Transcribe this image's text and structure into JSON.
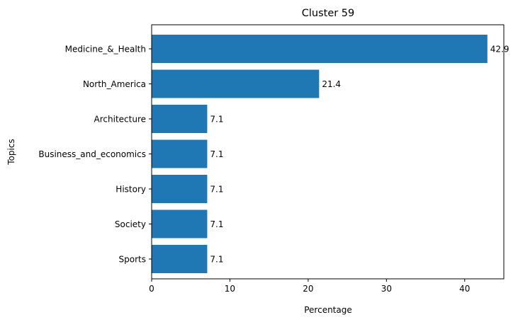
{
  "chart_data": {
    "type": "bar",
    "orientation": "horizontal",
    "title": "Cluster 59",
    "xlabel": "Percentage",
    "ylabel": "Topics",
    "categories": [
      "Medicine_&_Health",
      "North_America",
      "Architecture",
      "Business_and_economics",
      "History",
      "Society",
      "Sports"
    ],
    "values": [
      42.9,
      21.4,
      7.1,
      7.1,
      7.1,
      7.1,
      7.1
    ],
    "data_labels": [
      "42.9",
      "21.4",
      "7.1",
      "7.1",
      "7.1",
      "7.1",
      "7.1"
    ],
    "xlim": [
      0,
      45
    ],
    "xticks": [
      0,
      10,
      20,
      30,
      40
    ],
    "grid": false,
    "bar_color": "#1f77b4"
  }
}
